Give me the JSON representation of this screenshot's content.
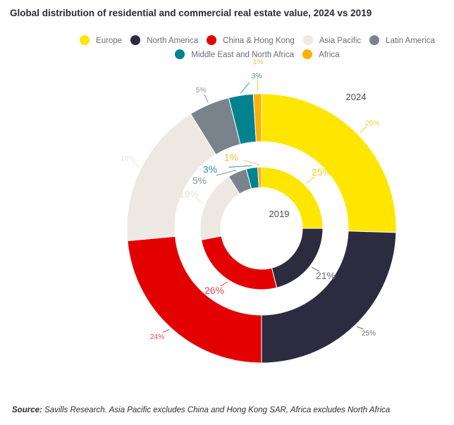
{
  "chart_data": {
    "type": "pie",
    "title": "Global distribution of residential and commercial real estate value, 2024 vs 2019",
    "categories": [
      "Europe",
      "North America",
      "China & Hong Kong",
      "Asia Pacific",
      "Latin America",
      "Middle East and North Africa",
      "Africa"
    ],
    "colors": [
      "#ffe500",
      "#2d2b40",
      "#e30000",
      "#eee8e3",
      "#7a838c",
      "#00838f",
      "#ffb000"
    ],
    "label_colors": [
      "#f5cf2a",
      "#6b6b78",
      "#e0494f",
      "#e8e0da",
      "#8a929a",
      "#2a9aa3",
      "#f5c040"
    ],
    "series": [
      {
        "name": "2024",
        "values": [
          26,
          25,
          24,
          18,
          5,
          3,
          1
        ],
        "labels": [
          "26%",
          "25%",
          "24%",
          "18%",
          "5%",
          "3%",
          "1%"
        ]
      },
      {
        "name": "2019",
        "values": [
          25,
          21,
          26,
          19,
          5,
          3,
          1
        ],
        "labels": [
          "25%",
          "21%",
          "26%",
          "19%",
          "5%",
          "3%",
          "1%"
        ]
      }
    ],
    "legend_position": "top"
  },
  "source_label": "Source:",
  "source_text": " Savills Research. Asia Pacific excludes China and Hong Kong SAR, Africa excludes North Africa"
}
